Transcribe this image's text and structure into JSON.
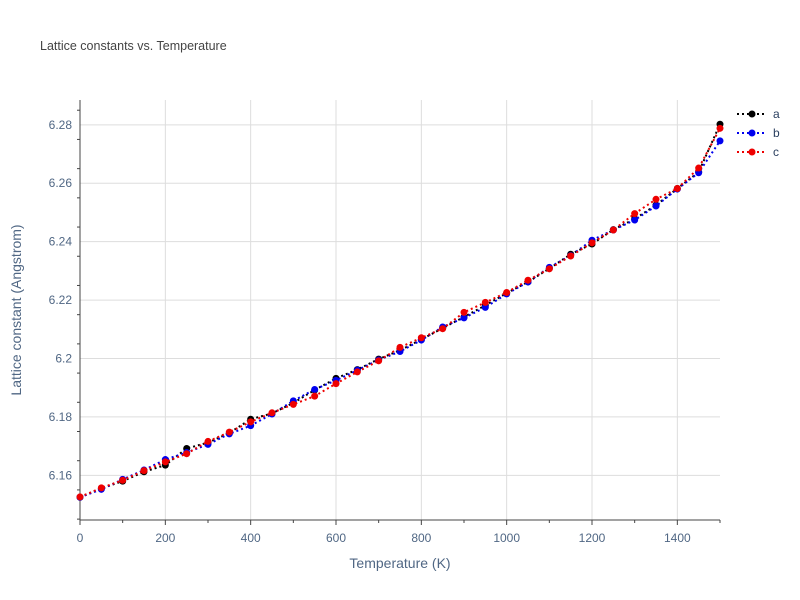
{
  "chart_data": {
    "type": "line",
    "title": "Lattice constants vs. Temperature",
    "xlabel": "Temperature (K)",
    "ylabel": "Lattice constant (Angstrom)",
    "xlim": [
      0,
      1500
    ],
    "ylim": [
      6.1447,
      6.2885
    ],
    "x_ticks": [
      0,
      200,
      400,
      600,
      800,
      1000,
      1200,
      1400
    ],
    "y_ticks": [
      6.16,
      6.18,
      6.2,
      6.22,
      6.24,
      6.26,
      6.28
    ],
    "y_tick_labels": [
      "6.16",
      "6.18",
      "6.2",
      "6.22",
      "6.24",
      "6.26",
      "6.28"
    ],
    "grid": true,
    "legend": "top-right",
    "x": [
      0,
      50,
      100,
      150,
      200,
      250,
      300,
      350,
      400,
      450,
      500,
      550,
      600,
      650,
      700,
      750,
      800,
      850,
      900,
      950,
      1000,
      1050,
      1100,
      1150,
      1200,
      1250,
      1300,
      1350,
      1400,
      1450,
      1500
    ],
    "series": [
      {
        "name": "a",
        "color": "#000000",
        "values": [
          6.1525,
          6.1555,
          6.158,
          6.1612,
          6.1635,
          6.1692,
          6.1712,
          6.1745,
          6.1792,
          6.1812,
          6.1848,
          6.1892,
          6.1932,
          6.1962,
          6.1998,
          6.2028,
          6.2065,
          6.2104,
          6.2142,
          6.2182,
          6.2224,
          6.2262,
          6.2308,
          6.2357,
          6.2392,
          6.2441,
          6.2478,
          6.2525,
          6.2582,
          6.2638,
          6.2802
        ]
      },
      {
        "name": "b",
        "color": "#0000ee",
        "values": [
          6.1525,
          6.1552,
          6.1586,
          6.1618,
          6.1654,
          6.1678,
          6.1706,
          6.1742,
          6.177,
          6.181,
          6.1855,
          6.1894,
          6.1925,
          6.196,
          6.1995,
          6.2024,
          6.2063,
          6.2108,
          6.2139,
          6.2175,
          6.2221,
          6.2262,
          6.2312,
          6.2352,
          6.2405,
          6.244,
          6.2474,
          6.2522,
          6.258,
          6.2636,
          6.2745
        ]
      },
      {
        "name": "c",
        "color": "#ee0000",
        "values": [
          6.1526,
          6.1557,
          6.1583,
          6.1616,
          6.1646,
          6.1674,
          6.1716,
          6.1748,
          6.1783,
          6.1814,
          6.1843,
          6.1871,
          6.1914,
          6.1954,
          6.1992,
          6.2038,
          6.2071,
          6.2102,
          6.2158,
          6.2192,
          6.2226,
          6.2268,
          6.2307,
          6.2351,
          6.2396,
          6.244,
          6.2496,
          6.2545,
          6.2582,
          6.2652,
          6.2788
        ]
      }
    ]
  }
}
